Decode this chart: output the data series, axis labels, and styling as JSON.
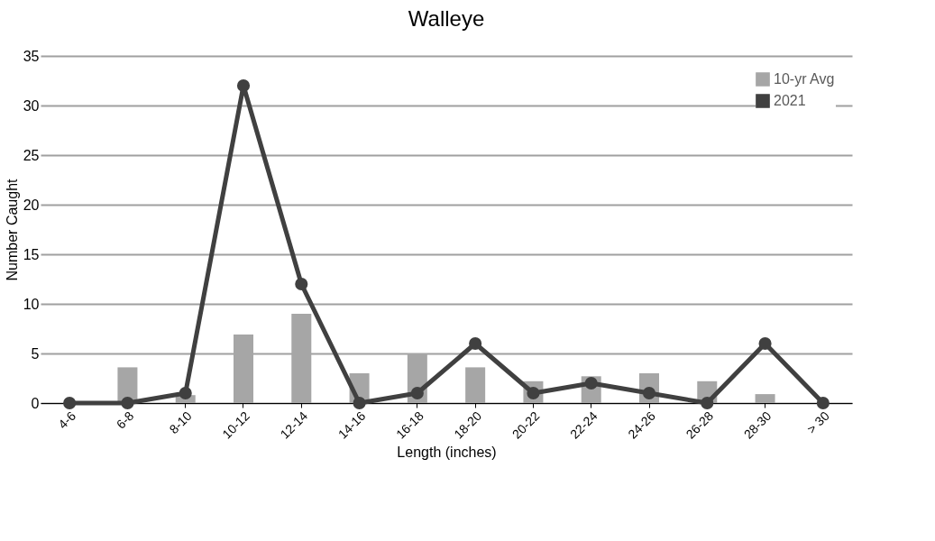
{
  "chart_data": {
    "type": "bar",
    "title": "Walleye",
    "xlabel": "Length (inches)",
    "ylabel": "Number Caught",
    "categories": [
      "4-6",
      "6-8",
      "8-10",
      "10-12",
      "12-14",
      "14-16",
      "16-18",
      "18-20",
      "20-22",
      "22-24",
      "24-26",
      "26-28",
      "28-30",
      "> 30"
    ],
    "series": [
      {
        "name": "10-yr Avg",
        "color": "#a6a6a6",
        "values": [
          0,
          3.6,
          0.8,
          6.9,
          9.0,
          3.0,
          5.0,
          3.6,
          2.2,
          2.7,
          3.0,
          2.2,
          0.9,
          0
        ]
      },
      {
        "name": "2021",
        "type": "line",
        "color": "#404040",
        "marker": "circle",
        "values": [
          0,
          0,
          1,
          32,
          12,
          0,
          1,
          6,
          1,
          2,
          1,
          0,
          6,
          0
        ]
      }
    ],
    "ylim": [
      0,
      35
    ],
    "yticks": [
      0,
      5,
      10,
      15,
      20,
      25,
      30,
      35
    ],
    "grid": "y",
    "legend": "top right"
  }
}
